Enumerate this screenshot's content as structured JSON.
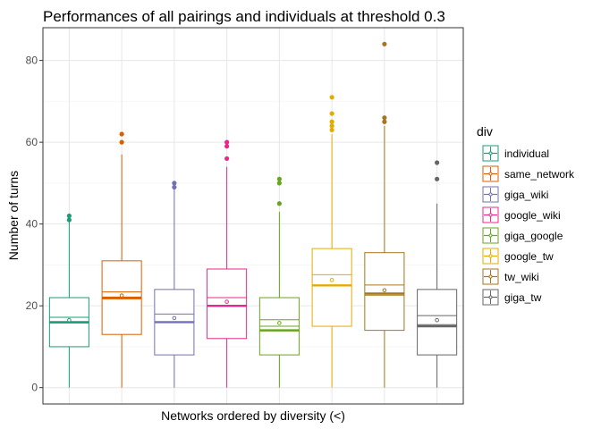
{
  "chart_data": {
    "type": "boxplot",
    "title": "Performances of all pairings and individuals at threshold 0.3",
    "xlabel": "Networks ordered by diversity (<)",
    "ylabel": "Number of turns",
    "ylim": [
      -4,
      88
    ],
    "yticks": [
      0,
      20,
      40,
      60,
      80
    ],
    "grid": true,
    "legend": {
      "title": "div",
      "position": "right"
    },
    "series": [
      {
        "name": "individual",
        "color": "#1b9e77",
        "whisker_low": 0,
        "q1": 10,
        "median": 16,
        "q3": 22,
        "whisker_high": 41,
        "mean": 16.5,
        "mean_ci": [
          15.8,
          17.2
        ],
        "outliers": [
          41,
          42
        ]
      },
      {
        "name": "same_network",
        "color": "#d95f02",
        "whisker_low": 0,
        "q1": 13,
        "median": 22,
        "q3": 31,
        "whisker_high": 57,
        "mean": 22.5,
        "mean_ci": [
          21.7,
          23.4
        ],
        "outliers": [
          60,
          62
        ]
      },
      {
        "name": "giga_wiki",
        "color": "#7570b3",
        "whisker_low": 0,
        "q1": 8,
        "median": 16,
        "q3": 24,
        "whisker_high": 49,
        "mean": 17.0,
        "mean_ci": [
          16.0,
          18.0
        ],
        "outliers": [
          49,
          50
        ]
      },
      {
        "name": "google_wiki",
        "color": "#e7298a",
        "whisker_low": 0,
        "q1": 12,
        "median": 20,
        "q3": 29,
        "whisker_high": 54,
        "mean": 21.0,
        "mean_ci": [
          20.0,
          22.0
        ],
        "outliers": [
          56,
          59,
          60
        ]
      },
      {
        "name": "giga_google",
        "color": "#66a61e",
        "whisker_low": 0,
        "q1": 8,
        "median": 14,
        "q3": 22,
        "whisker_high": 43,
        "mean": 15.8,
        "mean_ci": [
          15.0,
          16.6
        ],
        "outliers": [
          45,
          50,
          51
        ]
      },
      {
        "name": "google_tw",
        "color": "#e6ab02",
        "whisker_low": 0,
        "q1": 15,
        "median": 25,
        "q3": 34,
        "whisker_high": 62,
        "mean": 26.3,
        "mean_ci": [
          25.0,
          27.6
        ],
        "outliers": [
          63,
          64,
          65,
          67,
          71
        ]
      },
      {
        "name": "tw_wiki",
        "color": "#a6761d",
        "whisker_low": 0,
        "q1": 14,
        "median": 23,
        "q3": 33,
        "whisker_high": 64,
        "mean": 23.8,
        "mean_ci": [
          22.6,
          25.1
        ],
        "outliers": [
          65,
          66,
          84
        ]
      },
      {
        "name": "giga_tw",
        "color": "#666666",
        "whisker_low": 0,
        "q1": 8,
        "median": 15,
        "q3": 24,
        "whisker_high": 45,
        "mean": 16.5,
        "mean_ci": [
          15.4,
          17.6
        ],
        "outliers": [
          51,
          55
        ]
      }
    ]
  }
}
